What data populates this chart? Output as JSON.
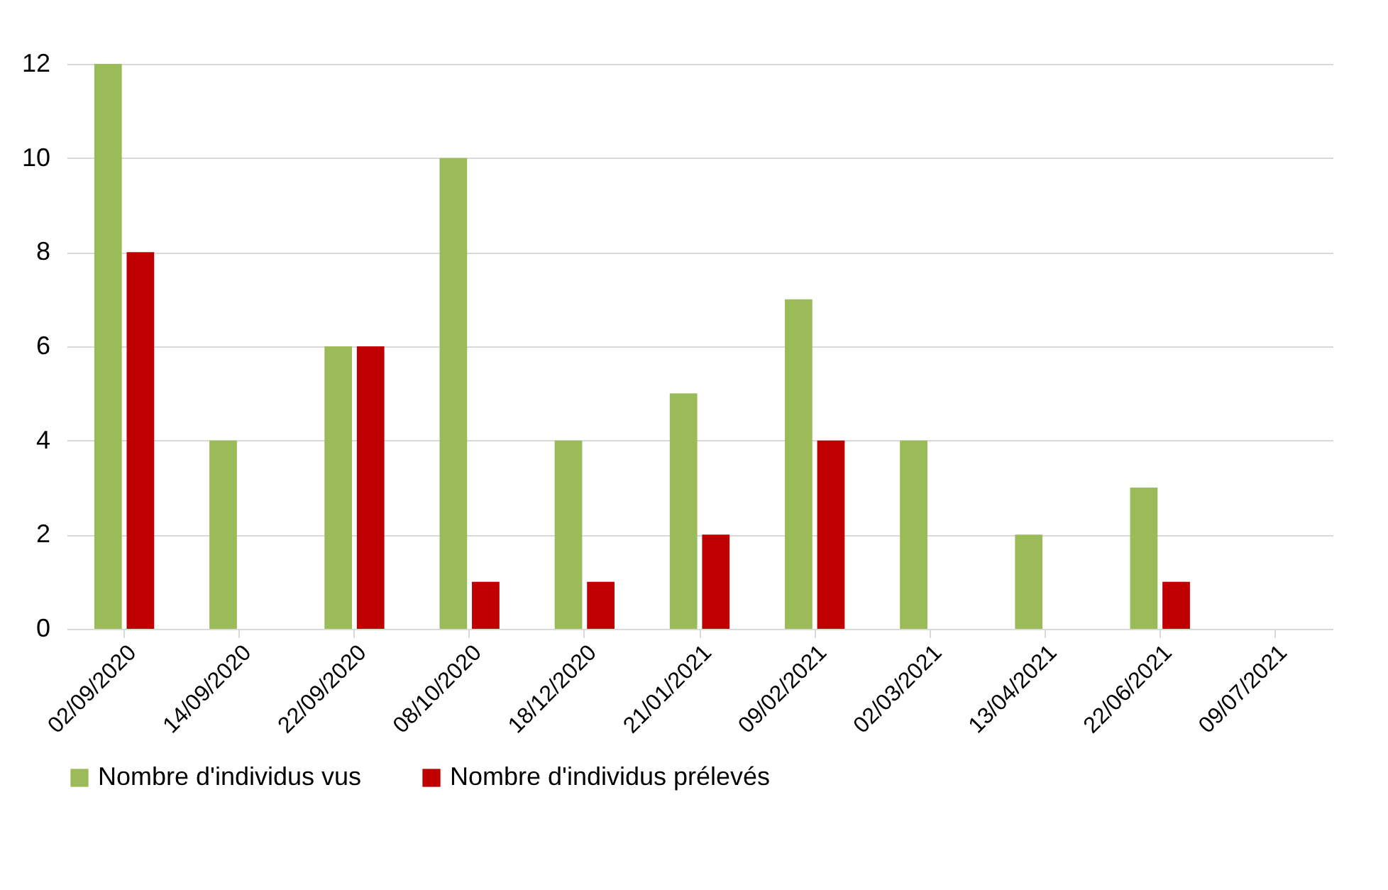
{
  "chart_data": {
    "type": "bar",
    "categories": [
      "02/09/2020",
      "14/09/2020",
      "22/09/2020",
      "08/10/2020",
      "18/12/2020",
      "21/01/2021",
      "09/02/2021",
      "02/03/2021",
      "13/04/2021",
      "22/06/2021",
      "09/07/2021"
    ],
    "series": [
      {
        "name": "Nombre d'individus vus",
        "color": "#9bbb59",
        "values": [
          12,
          4,
          6,
          10,
          4,
          5,
          7,
          4,
          2,
          3,
          0
        ]
      },
      {
        "name": "Nombre d'individus prélevés",
        "color": "#c00000",
        "values": [
          8,
          0,
          6,
          1,
          1,
          2,
          4,
          0,
          0,
          1,
          0
        ]
      }
    ],
    "ylim": [
      0,
      12
    ],
    "yticks": [
      0,
      2,
      4,
      6,
      8,
      10,
      12
    ],
    "grid": "y",
    "legend": "bottom"
  }
}
